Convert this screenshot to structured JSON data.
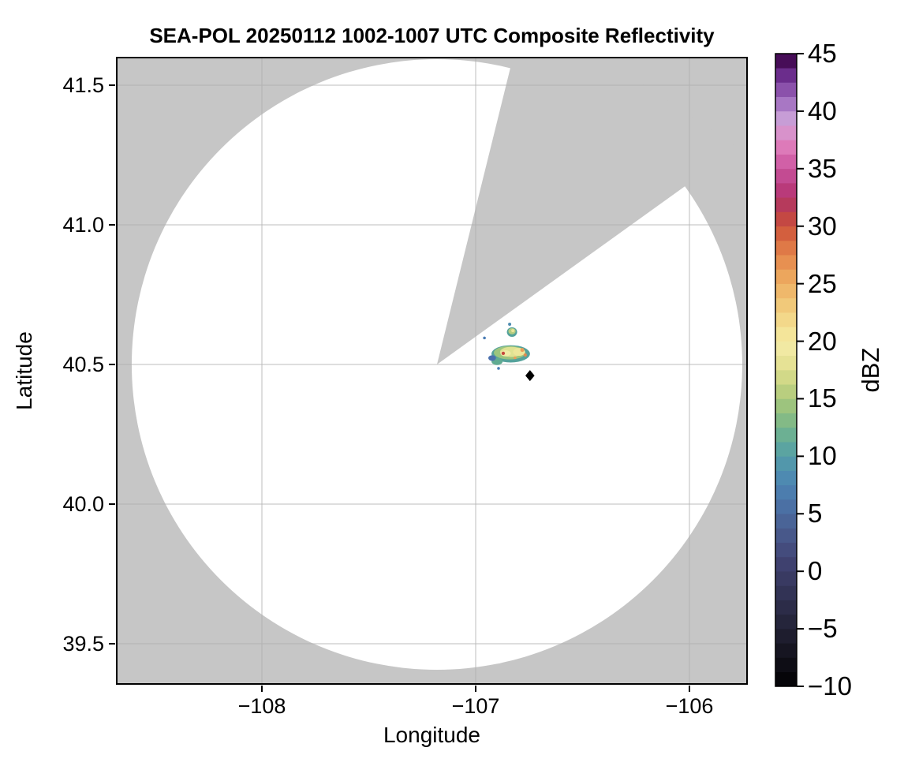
{
  "title": "SEA-POL 20250112 1002-1007 UTC Composite Reflectivity",
  "axes": {
    "xlabel": "Longitude",
    "ylabel": "Latitude",
    "x_ticks": [
      {
        "label": "−108",
        "value": -108
      },
      {
        "label": "−107",
        "value": -107
      },
      {
        "label": "−106",
        "value": -106
      }
    ],
    "y_ticks": [
      {
        "label": "41.5",
        "value": 41.5
      },
      {
        "label": "41.0",
        "value": 41.0
      },
      {
        "label": "40.5",
        "value": 40.5
      },
      {
        "label": "40.0",
        "value": 40.0
      },
      {
        "label": "39.5",
        "value": 39.5
      }
    ]
  },
  "colorbar": {
    "label": "dBZ",
    "min": -10,
    "max": 45,
    "segment_dbz": 1.25,
    "ticks": [
      {
        "label": "45",
        "value": 45
      },
      {
        "label": "40",
        "value": 40
      },
      {
        "label": "35",
        "value": 35
      },
      {
        "label": "30",
        "value": 30
      },
      {
        "label": "25",
        "value": 25
      },
      {
        "label": "20",
        "value": 20
      },
      {
        "label": "15",
        "value": 15
      },
      {
        "label": "10",
        "value": 10
      },
      {
        "label": "5",
        "value": 5
      },
      {
        "label": "0",
        "value": 0
      },
      {
        "label": "−5",
        "value": -5
      },
      {
        "label": "−10",
        "value": -10
      }
    ],
    "colors_bottom_to_top": [
      "#060509",
      "#0e0d15",
      "#161521",
      "#1e1d2e",
      "#25253b",
      "#2c2c48",
      "#323355",
      "#393a62",
      "#3f416f",
      "#444c7d",
      "#48588a",
      "#4a6497",
      "#4b70a4",
      "#4c7dae",
      "#4e8ab1",
      "#5297ab",
      "#5ba4a1",
      "#6cb093",
      "#83ba86",
      "#9dc47e",
      "#b9ce7f",
      "#d2d988",
      "#e6e295",
      "#f1e9a3",
      "#f4e59a",
      "#f3d88a",
      "#f1c97a",
      "#efb86b",
      "#eca65d",
      "#e79051",
      "#df7947",
      "#d35f3e",
      "#c44843",
      "#b63a5c",
      "#b93a7a",
      "#c34b92",
      "#d160a7",
      "#dd7ab9",
      "#d892cb",
      "#c79dd6",
      "#a877c4",
      "#8b51ab",
      "#6b2d8c",
      "#470d58"
    ]
  },
  "chart_data": {
    "type": "heatmap",
    "subtype": "radar_ppi_composite_reflectivity",
    "title": "SEA-POL 20250112 1002-1007 UTC Composite Reflectivity",
    "xlabel": "Longitude",
    "ylabel": "Latitude",
    "units": "dBZ",
    "xlim": [
      -108.68,
      -105.73
    ],
    "ylim": [
      39.35,
      41.6
    ],
    "x_ticks": [
      -108,
      -107,
      -106
    ],
    "y_ticks": [
      39.5,
      40.0,
      40.5,
      41.0,
      41.5
    ],
    "colorbar_range": [
      -10,
      45
    ],
    "colorbar_tick_step": 5,
    "grid": true,
    "masked_background_color": "#c6c6c6",
    "coverage_color": "#ffffff",
    "radar": {
      "lon": -107.181,
      "lat": 40.5,
      "coverage_radius_lon_deg": 1.428,
      "blocked_sector_azimuth_deg": [
        13.9,
        54.3
      ]
    },
    "echoes_summary": "Small convective cell ~(-106.84, 40.54): teal/blue fringe ~5 dBZ, yellow-green core ~15-20 dBZ, orange-red specks ~25-30 dBZ; smaller echo at (-106.83, 40.62); isolated ~5 dBZ pixels at (-106.96, 40.60) and (-106.89, 40.49)",
    "echo_shapes": [
      {
        "lon": -106.836,
        "lat": 40.538,
        "rx": 0.09,
        "ry": 0.031,
        "color": "#55a29b"
      },
      {
        "lon": -106.9,
        "lat": 40.511,
        "rx": 0.026,
        "ry": 0.013,
        "color": "#60ab92"
      },
      {
        "lon": -106.923,
        "lat": 40.523,
        "rx": 0.018,
        "ry": 0.01,
        "color": "#4a6fae"
      },
      {
        "lon": -106.841,
        "lat": 40.542,
        "rx": 0.074,
        "ry": 0.024,
        "color": "#9cc57e"
      },
      {
        "lon": -106.834,
        "lat": 40.545,
        "rx": 0.052,
        "ry": 0.018,
        "color": "#dfe292"
      },
      {
        "lon": -106.86,
        "lat": 40.54,
        "rx": 0.024,
        "ry": 0.011,
        "color": "#f0eba6"
      },
      {
        "lon": -106.797,
        "lat": 40.545,
        "rx": 0.028,
        "ry": 0.014,
        "color": "#ece69a"
      },
      {
        "lon": -106.782,
        "lat": 40.552,
        "rx": 0.009,
        "ry": 0.007,
        "color": "#eb9e58"
      },
      {
        "lon": -106.768,
        "lat": 40.534,
        "rx": 0.0075,
        "ry": 0.006,
        "color": "#e08a50"
      },
      {
        "lon": -106.816,
        "lat": 40.524,
        "rx": 0.0066,
        "ry": 0.005,
        "color": "#eb9e58"
      },
      {
        "lon": -106.871,
        "lat": 40.54,
        "rx": 0.008,
        "ry": 0.006,
        "color": "#c64a3e"
      },
      {
        "lon": -106.83,
        "lat": 40.616,
        "rx": 0.024,
        "ry": 0.017,
        "color": "#55a29b"
      },
      {
        "lon": -106.83,
        "lat": 40.619,
        "rx": 0.017,
        "ry": 0.011,
        "color": "#b5cd80"
      },
      {
        "lon": -106.826,
        "lat": 40.621,
        "rx": 0.0075,
        "ry": 0.0056,
        "color": "#e9e598"
      },
      {
        "lon": -106.841,
        "lat": 40.644,
        "rx": 0.0074,
        "ry": 0.0056,
        "color": "#4f8db2"
      },
      {
        "lon": -106.959,
        "lat": 40.595,
        "rx": 0.0066,
        "ry": 0.005,
        "color": "#4a7cb4"
      },
      {
        "lon": -106.893,
        "lat": 40.486,
        "rx": 0.0066,
        "ry": 0.005,
        "color": "#4a7cb4"
      }
    ],
    "marker": {
      "shape": "diamond",
      "color": "#000000",
      "lon": -106.746,
      "lat": 40.46
    }
  }
}
